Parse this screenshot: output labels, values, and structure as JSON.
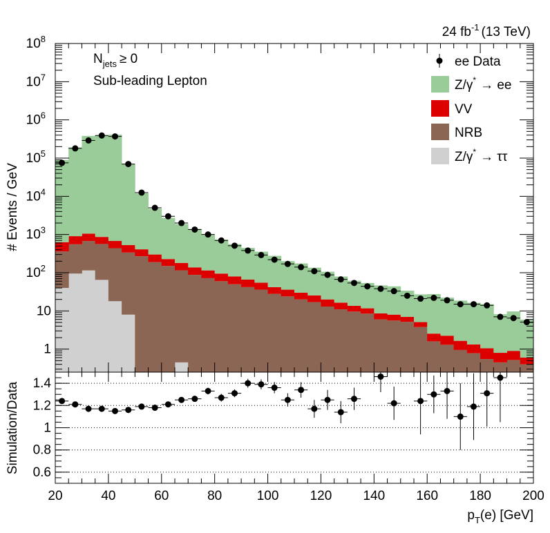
{
  "lumi_label": "24 fb",
  "lumi_sup": "-1",
  "lumi_energy": "(13 TeV)",
  "annotations": {
    "njets_main": "N",
    "njets_sub": "jets",
    "njets_cut": "≥ 0",
    "selection": "Sub-leading Lepton"
  },
  "legend": [
    {
      "key": "data",
      "label": "ee Data",
      "marker": "point",
      "color": "#000000"
    },
    {
      "key": "zee",
      "label": "Z/γ",
      "label_sup": "*",
      "label_tail": "→ ee",
      "marker": "box",
      "color": "#99cc99"
    },
    {
      "key": "vv",
      "label": "VV",
      "marker": "box",
      "color": "#dd0000"
    },
    {
      "key": "nrb",
      "label": "NRB",
      "marker": "box",
      "color": "#8b6654"
    },
    {
      "key": "ztt",
      "label": "Z/γ",
      "label_sup": "*",
      "label_tail": "→ ττ",
      "marker": "box",
      "color": "#d0d0d0"
    }
  ],
  "chart_data": [
    {
      "type": "bar",
      "stacked": true,
      "log_y": true,
      "ylabel": "# Events / GeV",
      "xlim": [
        20,
        200
      ],
      "ylim": [
        0.25,
        100000000
      ],
      "y_ticks": [
        {
          "v": 1,
          "label": "1"
        },
        {
          "v": 10,
          "label": "10"
        },
        {
          "v": 100,
          "label": "10",
          "sup": "2"
        },
        {
          "v": 1000,
          "label": "10",
          "sup": "3"
        },
        {
          "v": 10000,
          "label": "10",
          "sup": "4"
        },
        {
          "v": 100000,
          "label": "10",
          "sup": "5"
        },
        {
          "v": 1000000,
          "label": "10",
          "sup": "6"
        },
        {
          "v": 10000000,
          "label": "10",
          "sup": "7"
        },
        {
          "v": 100000000,
          "label": "10",
          "sup": "8"
        }
      ],
      "bin_edges": [
        20,
        25,
        30,
        35,
        40,
        45,
        50,
        55,
        60,
        65,
        70,
        75,
        80,
        85,
        90,
        95,
        100,
        105,
        110,
        115,
        120,
        125,
        130,
        135,
        140,
        145,
        150,
        155,
        160,
        165,
        170,
        175,
        180,
        185,
        190,
        195,
        200
      ],
      "series": [
        {
          "name": "Z/γ* → ττ",
          "color": "#d0d0d0",
          "values": [
            40,
            95,
            115,
            65,
            18,
            8,
            0,
            0,
            0,
            0.45,
            0,
            0,
            0,
            0,
            0,
            0,
            0,
            0,
            0,
            0,
            0,
            0,
            0,
            0,
            0,
            0,
            0,
            0,
            0,
            0,
            0,
            0,
            0,
            0,
            0,
            0
          ]
        },
        {
          "name": "NRB",
          "color": "#8b6654",
          "values": [
            320,
            460,
            560,
            500,
            420,
            330,
            270,
            190,
            150,
            115,
            88,
            72,
            60,
            50,
            42,
            36,
            28,
            24,
            20,
            17,
            13,
            11,
            9.6,
            8.5,
            6,
            5.6,
            5.2,
            3.8,
            1.6,
            1.3,
            0.95,
            0.78,
            0.55,
            0.45,
            0.52,
            0.4
          ]
        },
        {
          "name": "VV",
          "color": "#dd0000",
          "values": [
            270,
            350,
            380,
            300,
            240,
            190,
            140,
            110,
            78,
            65,
            50,
            43,
            35,
            30,
            24,
            19,
            14,
            12,
            10,
            8.5,
            7,
            5.5,
            4,
            3.2,
            2.6,
            2.4,
            1.8,
            1.3,
            0.95,
            0.95,
            0.7,
            0.55,
            0.5,
            0.35,
            0.38,
            0.2
          ]
        },
        {
          "name": "Z/γ* → ee",
          "color": "#99cc99",
          "values": [
            89000,
            190000,
            380000,
            395000,
            410000,
            69000,
            11500,
            4400,
            2500,
            1700,
            1270,
            870,
            640,
            480,
            380,
            300,
            235,
            165,
            145,
            110,
            86,
            63,
            48,
            42,
            38,
            36,
            27,
            22,
            25,
            20,
            17,
            15,
            14,
            7.4,
            8.8,
            5.3
          ]
        }
      ],
      "data_points": {
        "name": "ee Data",
        "x": [
          22.5,
          27.5,
          32.5,
          37.5,
          42.5,
          47.5,
          52.5,
          57.5,
          62.5,
          67.5,
          72.5,
          77.5,
          82.5,
          87.5,
          92.5,
          97.5,
          102.5,
          107.5,
          112.5,
          117.5,
          122.5,
          127.5,
          132.5,
          137.5,
          142.5,
          147.5,
          152.5,
          157.5,
          162.5,
          167.5,
          172.5,
          177.5,
          182.5,
          187.5,
          192.5,
          197.5
        ],
        "y": [
          75000,
          180000,
          290000,
          390000,
          370000,
          70000,
          12500,
          5000,
          3000,
          2000,
          1350,
          1000,
          700,
          510,
          380,
          290,
          220,
          170,
          140,
          110,
          88,
          67,
          54,
          44,
          38,
          33,
          25,
          21,
          22,
          19,
          15,
          15,
          14,
          7,
          6.5,
          5.1
        ]
      }
    },
    {
      "type": "scatter",
      "xlabel": "p",
      "xlabel_sub": "T",
      "xlabel_tail": "(e) [GeV]",
      "ylabel": "Simulation/Data",
      "xlim": [
        20,
        200
      ],
      "ylim": [
        0.5,
        1.5
      ],
      "x_ticks": [
        20,
        40,
        60,
        80,
        100,
        120,
        140,
        160,
        180,
        200
      ],
      "y_ticks": [
        0.6,
        0.8,
        1,
        1.2,
        1.4
      ],
      "y_tick_labels": [
        "0.6",
        "0.8",
        "1",
        "1.2",
        "1.4"
      ],
      "x_tick_labels": [
        "20",
        "40",
        "60",
        "80",
        "100",
        "120",
        "140",
        "160",
        "180",
        "200"
      ],
      "x": [
        22.5,
        27.5,
        32.5,
        37.5,
        42.5,
        47.5,
        52.5,
        57.5,
        62.5,
        67.5,
        72.5,
        77.5,
        82.5,
        87.5,
        92.5,
        97.5,
        102.5,
        107.5,
        112.5,
        117.5,
        122.5,
        127.5,
        132.5,
        137.5,
        142.5,
        147.5,
        152.5,
        157.5,
        162.5,
        167.5,
        172.5,
        177.5,
        182.5,
        187.5,
        192.5,
        197.5
      ],
      "y": [
        1.24,
        1.21,
        1.17,
        1.17,
        1.15,
        1.16,
        1.19,
        1.18,
        1.21,
        1.25,
        1.26,
        1.33,
        1.27,
        1.31,
        1.4,
        1.39,
        1.36,
        1.25,
        1.34,
        1.17,
        1.25,
        1.14,
        1.26,
        null,
        1.46,
        1.22,
        null,
        1.24,
        1.3,
        1.33,
        1.1,
        1.19,
        1.31,
        1.45,
        null,
        null
      ],
      "err": [
        0.01,
        0.01,
        0.01,
        0.01,
        0.01,
        0.01,
        0.015,
        0.015,
        0.02,
        0.02,
        0.025,
        0.03,
        0.035,
        0.035,
        0.04,
        0.045,
        0.05,
        0.06,
        0.07,
        0.08,
        0.09,
        0.1,
        0.1,
        0.1,
        0.14,
        0.15,
        0.15,
        0.3,
        0.17,
        0.25,
        0.3,
        0.3,
        0.3,
        0.4,
        0.3,
        0.3
      ]
    }
  ]
}
